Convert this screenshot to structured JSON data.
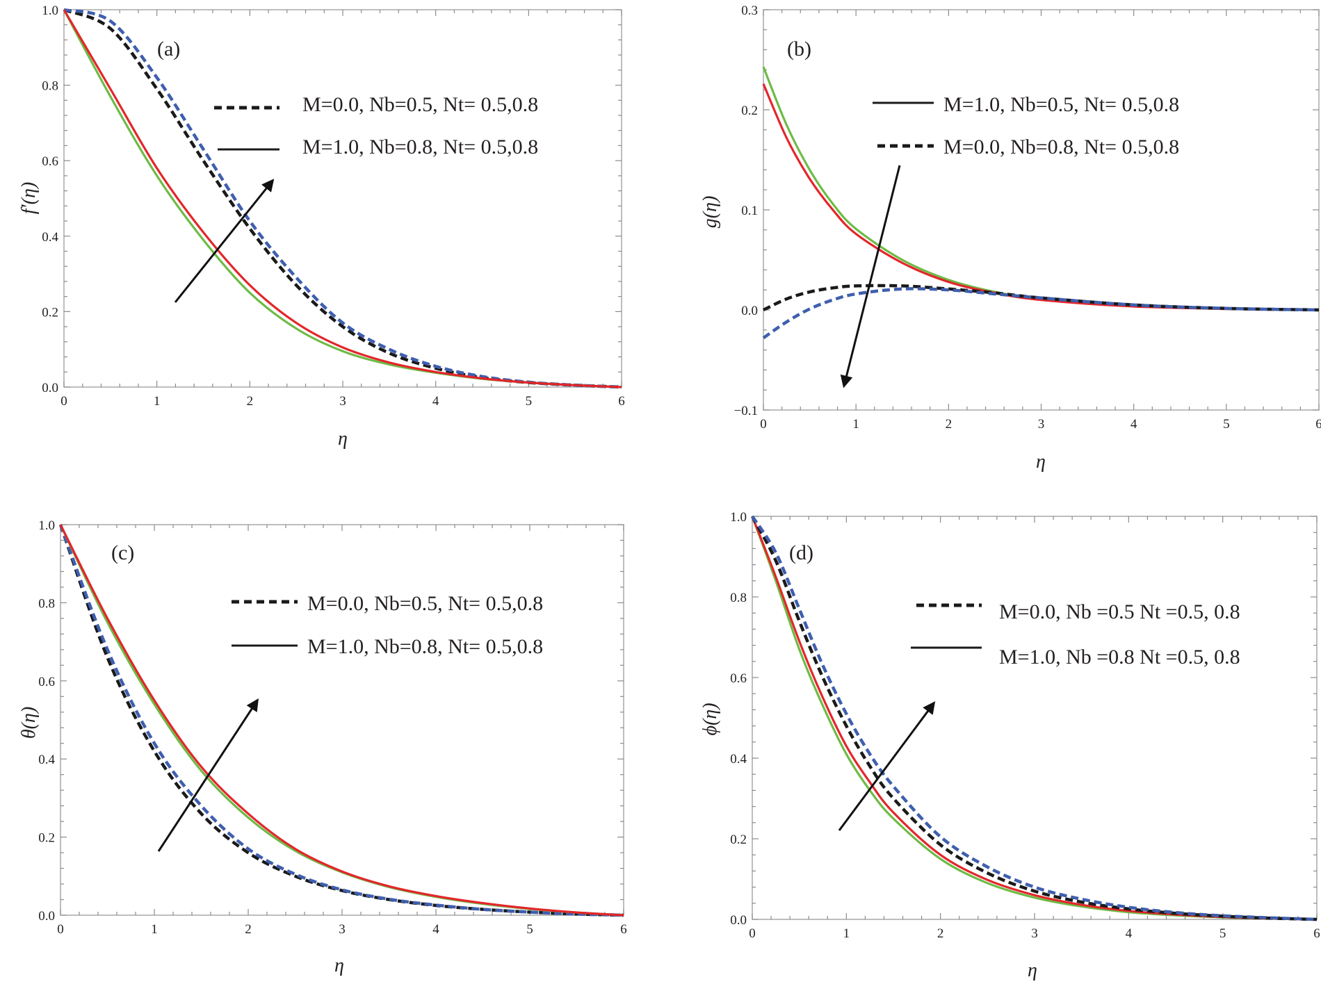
{
  "colors": {
    "black_dashed": "#1a1a1a",
    "blue_dashed": "#3f5fae",
    "green_solid": "#6dbb45",
    "red_solid": "#e3262b",
    "arrow": "#111111",
    "frame": "#9a9a9a"
  },
  "chart_data": [
    {
      "type": "line",
      "panel": "(a)",
      "ylabel": "f′(η)",
      "xlabel": "η",
      "xlim": [
        0,
        6
      ],
      "ylim": [
        0,
        1
      ],
      "x_ticks": [
        "0",
        "1",
        "2",
        "3",
        "4",
        "5",
        "6"
      ],
      "y_ticks": [
        "0.0",
        "0.2",
        "0.4",
        "0.6",
        "0.8",
        "1.0"
      ],
      "legend": [
        {
          "style": "dashed",
          "label": "M=0.0, Nb=0.5, Nt= 0.5,0.8"
        },
        {
          "style": "solid",
          "label": "M=1.0, Nb=0.8, Nt= 0.5,0.8"
        }
      ],
      "arrow": {
        "direction": "up-right"
      },
      "x": [
        0,
        0.5,
        1,
        1.5,
        2,
        2.5,
        3,
        3.5,
        4,
        4.5,
        5,
        5.5,
        6
      ],
      "series": [
        {
          "style": "dashed",
          "color": "black",
          "values": [
            1.0,
            0.95,
            0.79,
            0.6,
            0.42,
            0.27,
            0.16,
            0.09,
            0.05,
            0.025,
            0.012,
            0.005,
            0.0
          ]
        },
        {
          "style": "dashed",
          "color": "blue",
          "values": [
            1.0,
            0.97,
            0.82,
            0.63,
            0.44,
            0.29,
            0.17,
            0.1,
            0.055,
            0.028,
            0.013,
            0.005,
            0.0
          ]
        },
        {
          "style": "solid",
          "color": "green",
          "values": [
            1.0,
            0.77,
            0.56,
            0.39,
            0.25,
            0.155,
            0.095,
            0.06,
            0.038,
            0.022,
            0.012,
            0.005,
            0.0
          ]
        },
        {
          "style": "solid",
          "color": "red",
          "values": [
            1.0,
            0.79,
            0.58,
            0.41,
            0.27,
            0.17,
            0.105,
            0.065,
            0.04,
            0.023,
            0.012,
            0.005,
            0.0
          ]
        }
      ]
    },
    {
      "type": "line",
      "panel": "(b)",
      "ylabel": "g(η)",
      "xlabel": "η",
      "xlim": [
        0,
        6
      ],
      "ylim": [
        -0.1,
        0.3
      ],
      "x_ticks": [
        "0",
        "1",
        "2",
        "3",
        "4",
        "5",
        "6"
      ],
      "y_ticks": [
        "−0.1",
        "0.0",
        "0.1",
        "0.2",
        "0.3"
      ],
      "legend": [
        {
          "style": "solid",
          "label": "M=1.0, Nb=0.5, Nt= 0.5,0.8"
        },
        {
          "style": "dashed",
          "label": "M=0.0, Nb=0.8, Nt= 0.5,0.8"
        }
      ],
      "arrow": {
        "direction": "down-left"
      },
      "x": [
        0,
        0.25,
        0.5,
        0.75,
        1,
        1.5,
        2,
        2.5,
        3,
        4,
        5,
        6
      ],
      "series": [
        {
          "style": "solid",
          "color": "green",
          "values": [
            0.243,
            0.185,
            0.14,
            0.106,
            0.081,
            0.05,
            0.03,
            0.018,
            0.011,
            0.004,
            0.001,
            0.0
          ]
        },
        {
          "style": "solid",
          "color": "red",
          "values": [
            0.226,
            0.172,
            0.131,
            0.1,
            0.076,
            0.047,
            0.028,
            0.017,
            0.01,
            0.0035,
            0.001,
            0.0
          ]
        },
        {
          "style": "dashed",
          "color": "black",
          "values": [
            0.0,
            0.011,
            0.018,
            0.022,
            0.024,
            0.024,
            0.021,
            0.017,
            0.012,
            0.005,
            0.0015,
            0.0
          ]
        },
        {
          "style": "dashed",
          "color": "blue",
          "values": [
            -0.028,
            -0.012,
            0.001,
            0.01,
            0.016,
            0.021,
            0.02,
            0.016,
            0.012,
            0.005,
            0.0015,
            0.0
          ]
        }
      ]
    },
    {
      "type": "line",
      "panel": "(c)",
      "ylabel": "θ(η)",
      "xlabel": "η",
      "xlim": [
        0,
        6
      ],
      "ylim": [
        0,
        1
      ],
      "x_ticks": [
        "0",
        "1",
        "2",
        "3",
        "4",
        "5",
        "6"
      ],
      "y_ticks": [
        "0.0",
        "0.2",
        "0.4",
        "0.6",
        "0.8",
        "1.0"
      ],
      "legend": [
        {
          "style": "dashed",
          "label": "M=0.0, Nb=0.5, Nt= 0.5,0.8"
        },
        {
          "style": "solid",
          "label": "M=1.0, Nb=0.8, Nt= 0.5,0.8"
        }
      ],
      "arrow": {
        "direction": "up-right"
      },
      "x": [
        0,
        0.5,
        1,
        1.5,
        2,
        2.5,
        3,
        3.5,
        4,
        4.5,
        5,
        5.5,
        6
      ],
      "series": [
        {
          "style": "dashed",
          "color": "black",
          "values": [
            1.0,
            0.66,
            0.42,
            0.26,
            0.16,
            0.1,
            0.063,
            0.04,
            0.025,
            0.015,
            0.008,
            0.003,
            0.0
          ]
        },
        {
          "style": "dashed",
          "color": "blue",
          "values": [
            1.0,
            0.68,
            0.44,
            0.28,
            0.17,
            0.105,
            0.065,
            0.041,
            0.026,
            0.015,
            0.008,
            0.003,
            0.0
          ]
        },
        {
          "style": "solid",
          "color": "green",
          "values": [
            1.0,
            0.75,
            0.54,
            0.37,
            0.25,
            0.165,
            0.11,
            0.072,
            0.047,
            0.029,
            0.016,
            0.007,
            0.0
          ]
        },
        {
          "style": "solid",
          "color": "red",
          "values": [
            1.0,
            0.76,
            0.55,
            0.38,
            0.26,
            0.17,
            0.112,
            0.074,
            0.049,
            0.031,
            0.017,
            0.007,
            0.0
          ]
        }
      ]
    },
    {
      "type": "line",
      "panel": "(d)",
      "ylabel": "ϕ(η)",
      "xlabel": "η",
      "xlim": [
        0,
        6
      ],
      "ylim": [
        0,
        1
      ],
      "x_ticks": [
        "0",
        "1",
        "2",
        "3",
        "4",
        "5",
        "6"
      ],
      "y_ticks": [
        "0.0",
        "0.2",
        "0.4",
        "0.6",
        "0.8",
        "1.0"
      ],
      "legend": [
        {
          "style": "dashed",
          "label": "M=0.0, Nb =0.5  Nt =0.5, 0.8"
        },
        {
          "style": "solid",
          "label": "M=1.0, Nb =0.8  Nt =0.5, 0.8"
        }
      ],
      "arrow": {
        "direction": "up-right"
      },
      "x": [
        0,
        0.25,
        0.5,
        0.75,
        1,
        1.25,
        1.5,
        2,
        2.5,
        3,
        3.5,
        4,
        4.5,
        5,
        5.5,
        6
      ],
      "series": [
        {
          "style": "solid",
          "color": "green",
          "values": [
            1.0,
            0.84,
            0.67,
            0.53,
            0.41,
            0.32,
            0.25,
            0.15,
            0.09,
            0.054,
            0.032,
            0.018,
            0.01,
            0.005,
            0.002,
            0.0
          ]
        },
        {
          "style": "solid",
          "color": "red",
          "values": [
            1.0,
            0.85,
            0.69,
            0.55,
            0.43,
            0.34,
            0.265,
            0.16,
            0.098,
            0.06,
            0.036,
            0.021,
            0.012,
            0.006,
            0.002,
            0.0
          ]
        },
        {
          "style": "dashed",
          "color": "black",
          "values": [
            1.0,
            0.89,
            0.74,
            0.6,
            0.48,
            0.38,
            0.3,
            0.185,
            0.115,
            0.07,
            0.043,
            0.026,
            0.015,
            0.008,
            0.003,
            0.0
          ]
        },
        {
          "style": "dashed",
          "color": "blue",
          "values": [
            1.0,
            0.91,
            0.77,
            0.63,
            0.51,
            0.41,
            0.33,
            0.205,
            0.13,
            0.08,
            0.05,
            0.03,
            0.017,
            0.009,
            0.004,
            0.0
          ]
        }
      ]
    }
  ]
}
